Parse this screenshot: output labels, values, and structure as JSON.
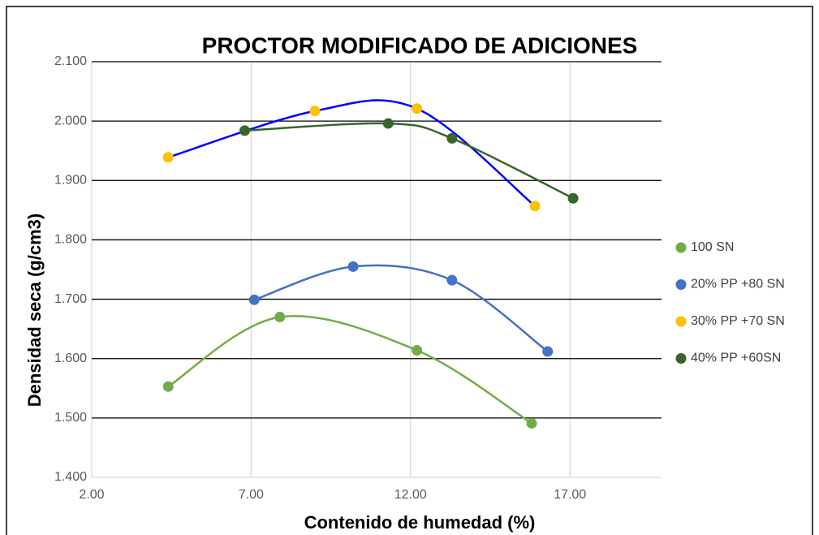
{
  "chart_data": {
    "type": "scatter",
    "title": "PROCTOR MODIFICADO DE ADICIONES",
    "x_label": "Contenido de humedad (%)",
    "y_label": "Densidad seca (g/cm3)",
    "xlim": [
      2,
      20
    ],
    "xticks": [
      {
        "value": 2,
        "label": "2.00"
      },
      {
        "value": 7,
        "label": "7.00"
      },
      {
        "value": 12,
        "label": "12.00"
      },
      {
        "value": 17,
        "label": "17.00"
      }
    ],
    "ylim": [
      1.4,
      2.1
    ],
    "yticks": [
      {
        "value": 1.4,
        "label": "1.400"
      },
      {
        "value": 1.5,
        "label": "1.500"
      },
      {
        "value": 1.6,
        "label": "1.600"
      },
      {
        "value": 1.7,
        "label": "1.700"
      },
      {
        "value": 1.8,
        "label": "1.800"
      },
      {
        "value": 1.9,
        "label": "1.900"
      },
      {
        "value": 2.0,
        "label": "2.000"
      },
      {
        "value": 2.1,
        "label": "2.100"
      }
    ],
    "grid": true,
    "smooth": true,
    "legend": "right",
    "series": [
      {
        "name": "100 SN",
        "color": "#70ad47",
        "line_color": "#70ad47",
        "x": [
          4.4,
          7.9,
          12.2,
          15.8
        ],
        "values": [
          1.553,
          1.67,
          1.614,
          1.491
        ]
      },
      {
        "name": "20% PP +80 SN",
        "color": "#4472c4",
        "line_color": "#4472c4",
        "x": [
          7.1,
          10.2,
          13.3,
          16.3
        ],
        "values": [
          1.699,
          1.755,
          1.732,
          1.612
        ]
      },
      {
        "name": "30% PP +70 SN",
        "color": "#ffc000",
        "line_color": "#0000ff",
        "x": [
          4.4,
          9.0,
          12.2,
          15.9
        ],
        "values": [
          1.939,
          2.017,
          2.021,
          1.857
        ]
      },
      {
        "name": "40% PP +60SN",
        "color": "#38652a",
        "line_color": "#38652a",
        "x": [
          6.8,
          11.3,
          13.3,
          17.1
        ],
        "values": [
          1.984,
          1.996,
          1.971,
          1.87
        ]
      }
    ]
  }
}
